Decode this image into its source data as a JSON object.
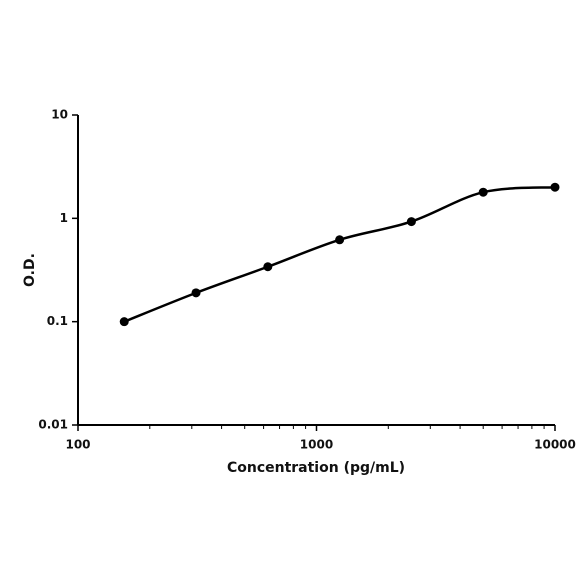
{
  "chart_data": {
    "type": "line",
    "x_label": "Concentration (pg/mL)",
    "y_label": "O.D.",
    "x": [
      156.25,
      312.5,
      625,
      1250,
      2500,
      5000,
      10000
    ],
    "series": [
      {
        "color": "#000000",
        "values": [
          0.1,
          0.19,
          0.34,
          0.62,
          0.93,
          1.79,
          2.0
        ]
      }
    ],
    "xscale": "log",
    "yscale": "log",
    "xlim": [
      100,
      10000
    ],
    "ylim": [
      0.01,
      10
    ],
    "xticks": [
      100,
      1000,
      10000
    ],
    "yticks": [
      0.01,
      0.1,
      1,
      10
    ]
  }
}
